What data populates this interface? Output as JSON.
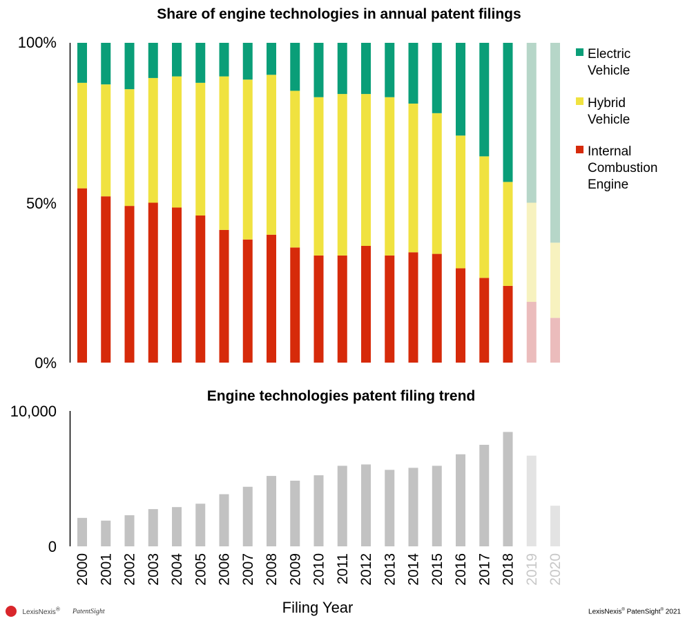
{
  "chart_data": [
    {
      "type": "bar",
      "stacked": true,
      "title": "Share of engine technologies in annual patent filings",
      "categories": [
        "2000",
        "2001",
        "2002",
        "2003",
        "2004",
        "2005",
        "2006",
        "2007",
        "2008",
        "2009",
        "2010",
        "2011",
        "2012",
        "2013",
        "2014",
        "2015",
        "2016",
        "2017",
        "2018",
        "2019",
        "2020"
      ],
      "faded_categories": [
        "2019",
        "2020"
      ],
      "y_ticks": [
        "0%",
        "50%",
        "100%"
      ],
      "ylim": [
        0,
        100
      ],
      "legend_position": "right",
      "series": [
        {
          "name": "Internal Combustion Engine",
          "color": "#d62a0a",
          "faded_color": "#ebbcbc",
          "values": [
            54.5,
            52,
            49,
            50,
            48.5,
            46,
            41.5,
            38.5,
            40,
            36,
            33.5,
            33.5,
            36.5,
            33.5,
            34.5,
            34,
            29.5,
            26.5,
            24,
            19,
            14
          ]
        },
        {
          "name": "Hybrid Vehicle",
          "color": "#f0e240",
          "faded_color": "#f7f2bf",
          "values": [
            33,
            35,
            36.5,
            39,
            41,
            41.5,
            48,
            50,
            50,
            49,
            49.5,
            50.5,
            47.5,
            49.5,
            46.5,
            44,
            41.5,
            38,
            32.5,
            31,
            23.5
          ]
        },
        {
          "name": "Electric Vehicle",
          "color": "#0a9e78",
          "faded_color": "#b6d6c8",
          "values": [
            12.5,
            13,
            14.5,
            11,
            10.5,
            12.5,
            10.5,
            11.5,
            10,
            15,
            17,
            16,
            16,
            17,
            19,
            22,
            29,
            35.5,
            43.5,
            50,
            62.5
          ]
        }
      ],
      "legend_lines": [
        [
          "Electric",
          "Vehicle"
        ],
        [
          "Hybrid",
          "Vehicle"
        ],
        [
          "Internal",
          "Combustion",
          "Engine"
        ]
      ]
    },
    {
      "type": "bar",
      "title": "Engine technologies patent filing trend",
      "categories": [
        "2000",
        "2001",
        "2002",
        "2003",
        "2004",
        "2005",
        "2006",
        "2007",
        "2008",
        "2009",
        "2010",
        "2011",
        "2012",
        "2013",
        "2014",
        "2015",
        "2016",
        "2017",
        "2018",
        "2019",
        "2020"
      ],
      "faded_categories": [
        "2019",
        "2020"
      ],
      "values": [
        2100,
        1900,
        2300,
        2750,
        2900,
        3150,
        3850,
        4400,
        5200,
        4850,
        5250,
        5950,
        6050,
        5650,
        5800,
        5950,
        6800,
        7500,
        8450,
        6700,
        3000
      ],
      "color": "#c2c2c2",
      "faded_color": "#e3e3e3",
      "y_ticks": [
        "0",
        "10,000"
      ],
      "ylim": [
        0,
        10000
      ],
      "xlabel": "Filing Year"
    }
  ],
  "footer": {
    "logo_text": "LexisNexis",
    "logo_text_sup": "®",
    "logo_sub": "PatentSight",
    "credit_parts": [
      "LexisNexis",
      "®",
      " PatenSight",
      "®",
      " 2021"
    ]
  }
}
